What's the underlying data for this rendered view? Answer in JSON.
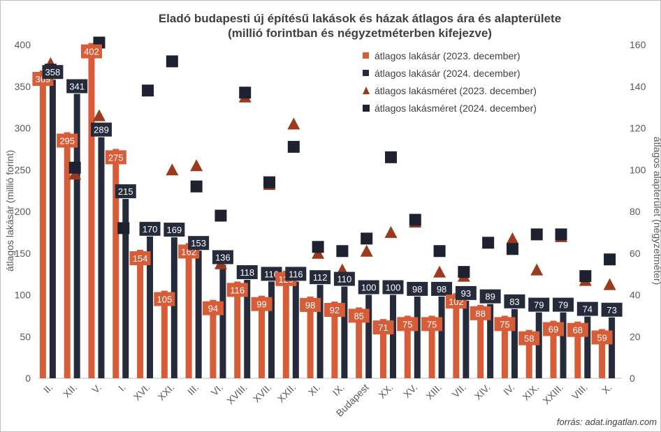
{
  "chart_data": {
    "type": "bar",
    "title_line1": "Eladó budapesti új építésű lakások és házak átlagos ára és alapterülete",
    "title_line2": "(millió forintban és négyzetméterben kifejezve)",
    "ylabel": "átlagos lakásár (millió forint)",
    "y2label": "átlagos alapterület (négyzetméter)",
    "ylim": [
      0,
      400
    ],
    "y2lim": [
      0,
      160
    ],
    "yticks": [
      "0",
      "50",
      "100",
      "150",
      "200",
      "250",
      "300",
      "350",
      "400"
    ],
    "y2ticks": [
      "0",
      "20",
      "40",
      "60",
      "80",
      "100",
      "120",
      "140",
      "160"
    ],
    "grid": false,
    "legend_position": "top-right",
    "categories": [
      "II.",
      "XII.",
      "V.",
      "I.",
      "XVI.",
      "XXI.",
      "III.",
      "VI.",
      "XVIII.",
      "XVII.",
      "XXII.",
      "XI.",
      "IX.",
      "Budapest",
      "XX.",
      "XV.",
      "XIII.",
      "VII.",
      "XIV.",
      "IV.",
      "XIX.",
      "XXIII.",
      "VIII.",
      "X."
    ],
    "series": [
      {
        "name": "átlagos lakásár (2023. december)",
        "kind": "bar",
        "axis": "left",
        "color": "#d75c38",
        "values": [
          369,
          295,
          402,
          275,
          154,
          105,
          162,
          94,
          116,
          99,
          129,
          98,
          92,
          85,
          71,
          75,
          75,
          102,
          88,
          75,
          58,
          69,
          68,
          59
        ],
        "labels": [
          "369",
          "295",
          "402",
          "275",
          "154",
          "105",
          "162",
          "94",
          "116",
          "99",
          "129",
          "98",
          "92",
          "85",
          "71",
          "75",
          "75",
          "102",
          "88",
          "75",
          "58",
          "69",
          "68",
          "59"
        ]
      },
      {
        "name": "átlagos lakásár (2024. december)",
        "kind": "bar",
        "axis": "left",
        "color": "#262b3c",
        "values": [
          358,
          341,
          289,
          215,
          170,
          169,
          153,
          136,
          118,
          116,
          116,
          112,
          110,
          100,
          100,
          98,
          98,
          93,
          89,
          83,
          79,
          79,
          74,
          73
        ],
        "labels": [
          "358",
          "341",
          "289",
          "215",
          "170",
          "169",
          "153",
          "136",
          "118",
          "116",
          "116",
          "112",
          "110",
          "100",
          "100",
          "98",
          "98",
          "93",
          "89",
          "83",
          "79",
          "79",
          "74",
          "73"
        ]
      },
      {
        "name": "átlagos lakásméret (2023. december)",
        "kind": "marker",
        "marker": "triangle",
        "axis": "right",
        "color": "#9a3a1e",
        "values": [
          151,
          98,
          126,
          90,
          138,
          100,
          102,
          55,
          135,
          93,
          122,
          60,
          52,
          61,
          70,
          75,
          51,
          49,
          65,
          67,
          52,
          68,
          47,
          45
        ]
      },
      {
        "name": "átlagos lakásméret (2024. december)",
        "kind": "marker",
        "marker": "square",
        "axis": "right",
        "color": "#1e2230",
        "values": [
          148,
          101,
          161,
          72,
          138,
          152,
          92,
          78,
          137,
          94,
          111,
          63,
          61,
          67,
          106,
          76,
          61,
          51,
          65,
          62,
          69,
          69,
          49,
          57
        ]
      }
    ],
    "source": "forrás: adat.ingatlan.com"
  }
}
